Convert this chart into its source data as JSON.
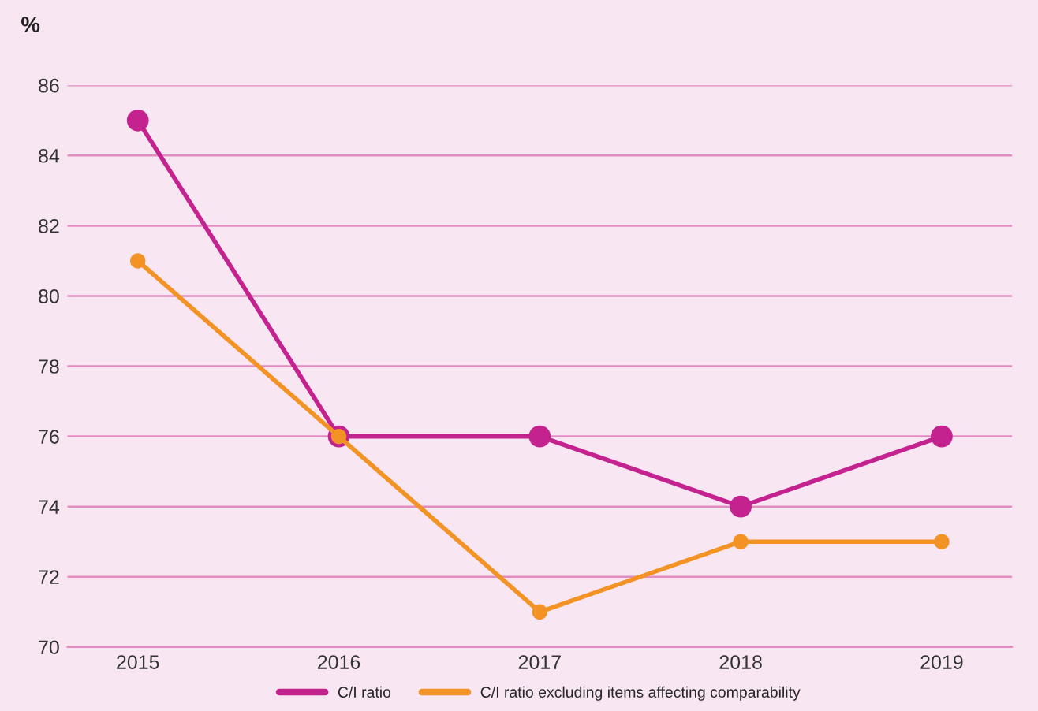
{
  "chart_data": {
    "type": "line",
    "ylabel": "%",
    "categories": [
      "2015",
      "2016",
      "2017",
      "2018",
      "2019"
    ],
    "series": [
      {
        "name": "C/I ratio",
        "color": "#c4228f",
        "values": [
          85,
          76,
          76,
          74,
          76
        ]
      },
      {
        "name": "C/I ratio excluding items affecting comparability",
        "color": "#f39325",
        "values": [
          81,
          76,
          71,
          73,
          73
        ]
      }
    ],
    "ylim": [
      70,
      86
    ],
    "yticks": [
      70,
      72,
      74,
      76,
      78,
      80,
      82,
      84,
      86
    ],
    "grid": "y",
    "legend": "bottom",
    "marker": "circle",
    "line_style": "solid"
  }
}
